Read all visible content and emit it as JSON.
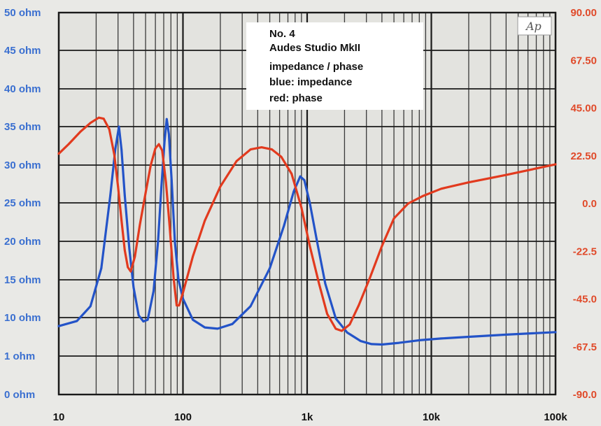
{
  "chart_data": {
    "type": "line",
    "x_scale": "log",
    "xlim": [
      10,
      100000
    ],
    "x_ticks": [
      10,
      100,
      1000,
      10000,
      100000
    ],
    "x_tick_labels": [
      "10",
      "100",
      "1k",
      "10k",
      "100k"
    ],
    "y_left_tick_labels": [
      "50 ohm",
      "45 ohm",
      "40 ohm",
      "35 ohm",
      "30 ohm",
      "25 ohm",
      "20 ohm",
      "15 ohm",
      "10 ohm",
      "1 ohm",
      "0 ohm"
    ],
    "y_right_tick_labels": [
      "90.00",
      "67.50",
      "45.00",
      "22.50",
      "0.0",
      "-22.5",
      "-45.0",
      "-67.5",
      "-90.0"
    ],
    "y_right_lim": [
      -90,
      90
    ],
    "grid": true,
    "legend_lines": [
      "No. 4",
      "Audes Studio MkII",
      "impedance / phase",
      "blue: impedance",
      "red: phase"
    ],
    "badge": "Ap",
    "series": [
      {
        "color": "#2353c8",
        "axis": "left",
        "points": [
          [
            10,
            8.0
          ],
          [
            14,
            9.2
          ],
          [
            18,
            11.5
          ],
          [
            22,
            16.5
          ],
          [
            26,
            26
          ],
          [
            28.5,
            32
          ],
          [
            30.5,
            35
          ],
          [
            32,
            32
          ],
          [
            34,
            26
          ],
          [
            37,
            19
          ],
          [
            40,
            14
          ],
          [
            44,
            10.3
          ],
          [
            48,
            9.1
          ],
          [
            52,
            9.5
          ],
          [
            58,
            13.5
          ],
          [
            63,
            20
          ],
          [
            67,
            27
          ],
          [
            71,
            33
          ],
          [
            74,
            36
          ],
          [
            77,
            34
          ],
          [
            81,
            28
          ],
          [
            86,
            20
          ],
          [
            92,
            15
          ],
          [
            100,
            12.5
          ],
          [
            120,
            9.5
          ],
          [
            150,
            7.7
          ],
          [
            190,
            7.4
          ],
          [
            250,
            8.5
          ],
          [
            350,
            11.5
          ],
          [
            500,
            16.5
          ],
          [
            650,
            22
          ],
          [
            780,
            26.5
          ],
          [
            880,
            28.5
          ],
          [
            950,
            28
          ],
          [
            1050,
            25
          ],
          [
            1200,
            20
          ],
          [
            1400,
            14.5
          ],
          [
            1700,
            9.8
          ],
          [
            2100,
            6.5
          ],
          [
            2700,
            4.5
          ],
          [
            3300,
            3.8
          ],
          [
            4000,
            3.7
          ],
          [
            5500,
            4.1
          ],
          [
            8000,
            4.7
          ],
          [
            12000,
            5.1
          ],
          [
            20000,
            5.5
          ],
          [
            40000,
            6.0
          ],
          [
            100000,
            6.6
          ]
        ]
      },
      {
        "color": "#e23a1e",
        "axis": "right",
        "points": [
          [
            10,
            23.5
          ],
          [
            12,
            28
          ],
          [
            15,
            34
          ],
          [
            18,
            38
          ],
          [
            21,
            40.5
          ],
          [
            23,
            40
          ],
          [
            25.5,
            35
          ],
          [
            28,
            23
          ],
          [
            30,
            8
          ],
          [
            32,
            -8
          ],
          [
            34,
            -22
          ],
          [
            36,
            -30
          ],
          [
            38,
            -32
          ],
          [
            41,
            -25
          ],
          [
            45,
            -10
          ],
          [
            50,
            5
          ],
          [
            55,
            18
          ],
          [
            60,
            26
          ],
          [
            64,
            28
          ],
          [
            68,
            25
          ],
          [
            73,
            10
          ],
          [
            78,
            -10
          ],
          [
            84,
            -35
          ],
          [
            89,
            -48
          ],
          [
            93,
            -48
          ],
          [
            100,
            -42
          ],
          [
            120,
            -25
          ],
          [
            150,
            -8
          ],
          [
            200,
            8
          ],
          [
            270,
            20
          ],
          [
            350,
            25.5
          ],
          [
            430,
            26.5
          ],
          [
            520,
            25.5
          ],
          [
            620,
            22
          ],
          [
            750,
            14
          ],
          [
            900,
            -2
          ],
          [
            1050,
            -20
          ],
          [
            1250,
            -38
          ],
          [
            1450,
            -52
          ],
          [
            1700,
            -59
          ],
          [
            1900,
            -60
          ],
          [
            2200,
            -57
          ],
          [
            2600,
            -48
          ],
          [
            3200,
            -35
          ],
          [
            4000,
            -20
          ],
          [
            5000,
            -7
          ],
          [
            6500,
            0
          ],
          [
            8500,
            3.5
          ],
          [
            12000,
            7
          ],
          [
            20000,
            10
          ],
          [
            40000,
            13.5
          ],
          [
            100000,
            18.5
          ]
        ]
      }
    ]
  }
}
